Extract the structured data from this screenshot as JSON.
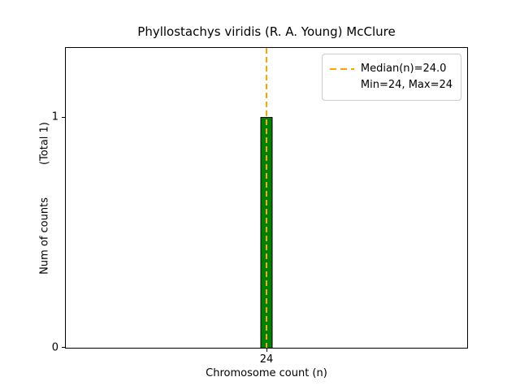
{
  "figure": {
    "ylabel": "Num of counts",
    "ylabel_total": "(Total 1)",
    "yticks": [
      "0",
      "1"
    ],
    "legend": {
      "line1": "Median(n)=24.0",
      "line2": "Min=24, Max=24"
    },
    "colors": {
      "bar_fill": "#008000",
      "bar_edge": "#000000",
      "median_line": "#ffa500"
    }
  },
  "chart_data": {
    "type": "bar",
    "categories": [
      24
    ],
    "values": [
      1
    ],
    "title": "Phyllostachys viridis (R. A. Young) McClure",
    "xlabel": "Chromosome count (n)",
    "ylabel": "Num of counts (Total 1)",
    "ylim": [
      0,
      1.3
    ],
    "yticks": [
      0,
      1
    ],
    "grid": false,
    "legend_position": "upper right",
    "total_counts": 1,
    "median": 24.0,
    "min": 24,
    "max": 24,
    "annotations": [
      {
        "type": "vline",
        "x": 24,
        "style": "dashed",
        "color": "#ffa500",
        "label": "Median(n)=24.0"
      }
    ]
  }
}
